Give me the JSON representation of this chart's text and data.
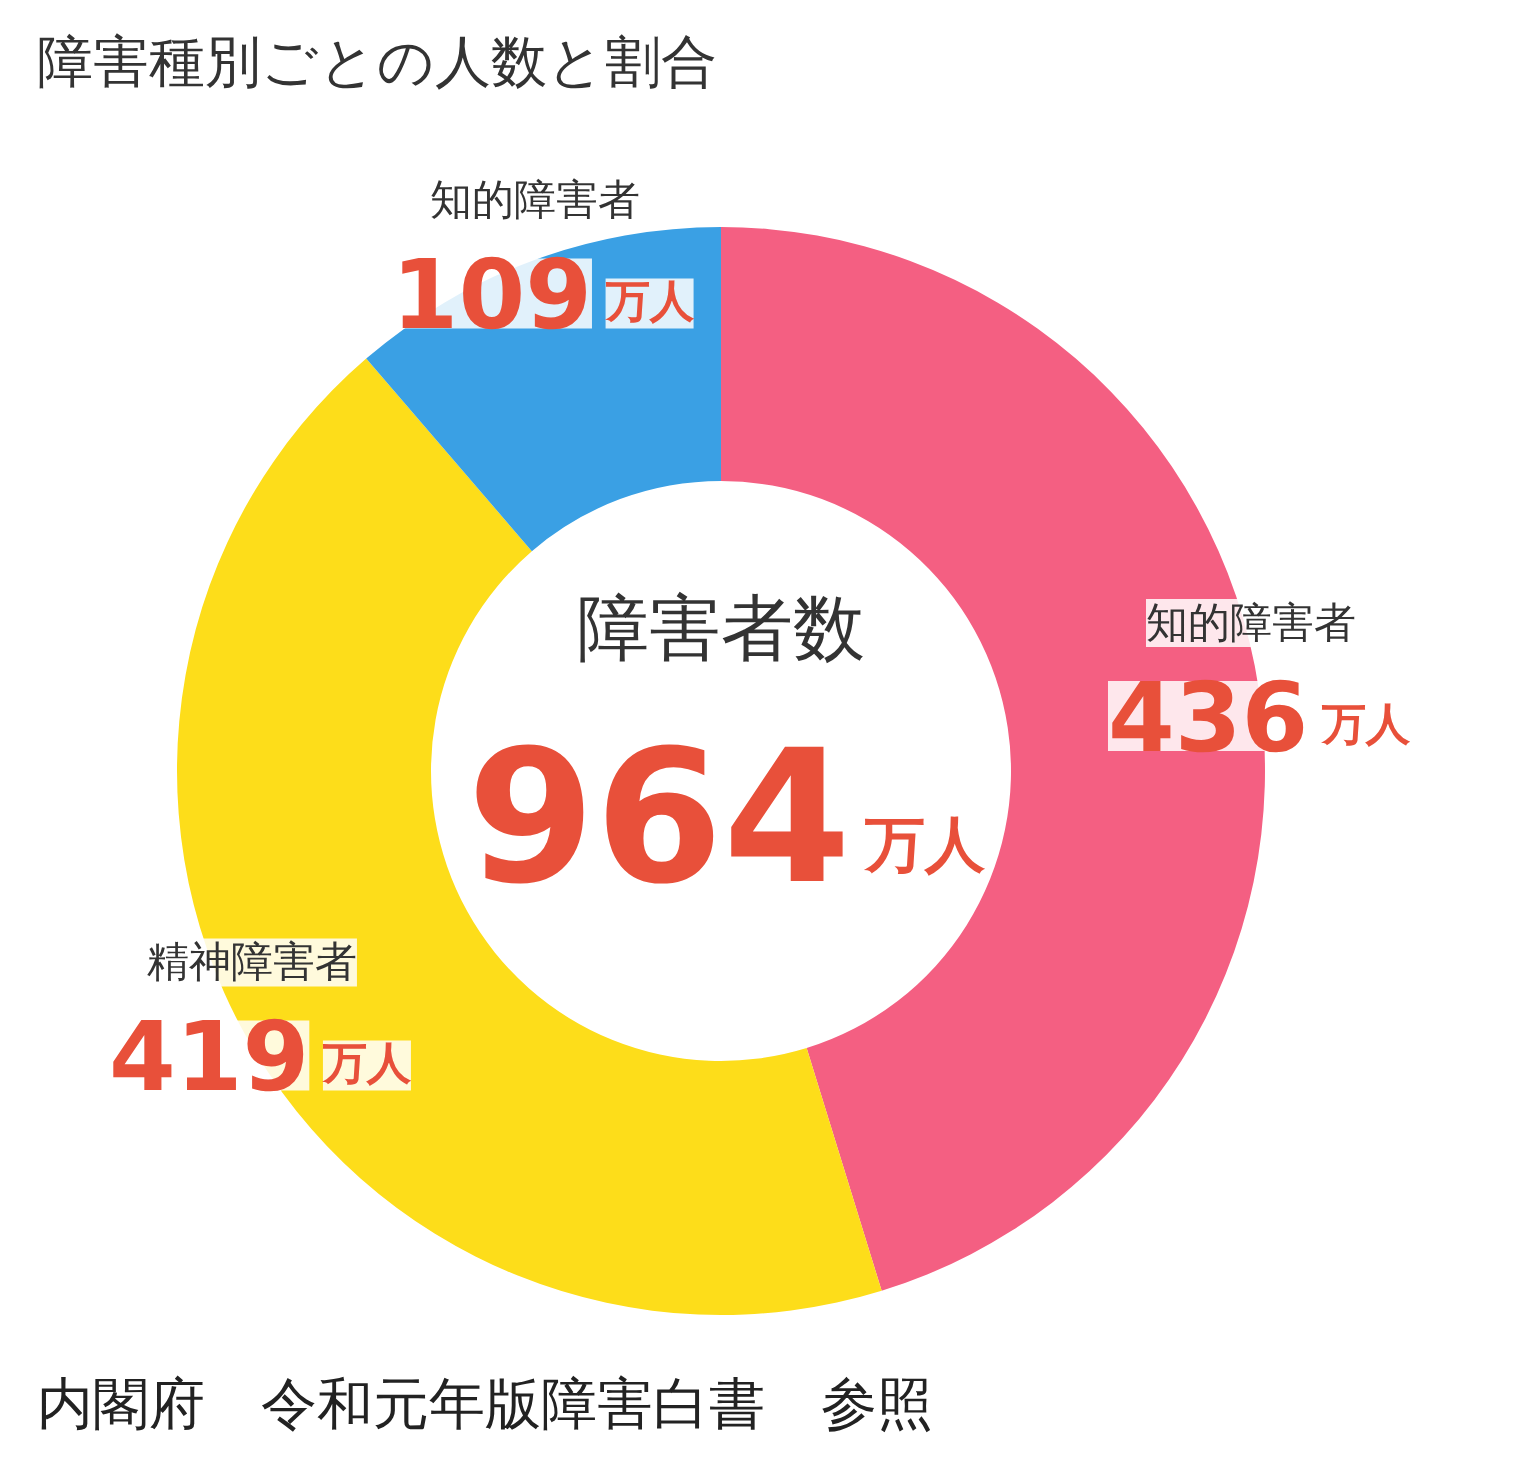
{
  "chart_data": {
    "type": "donut",
    "title": "障害種別ごとの人数と割合",
    "categories": [
      "知的障害者",
      "精神障害者",
      "知的障害者"
    ],
    "values": [
      436,
      419,
      109
    ],
    "colors": [
      "#f45f82",
      "#fddd1a",
      "#3aa0e4"
    ],
    "value_labels": [
      "436万人",
      "419万人",
      "109万人"
    ],
    "annotations": [
      "障害者数",
      "964万人",
      "内閣府　令和元年版障害白書　参照"
    ]
  }
}
